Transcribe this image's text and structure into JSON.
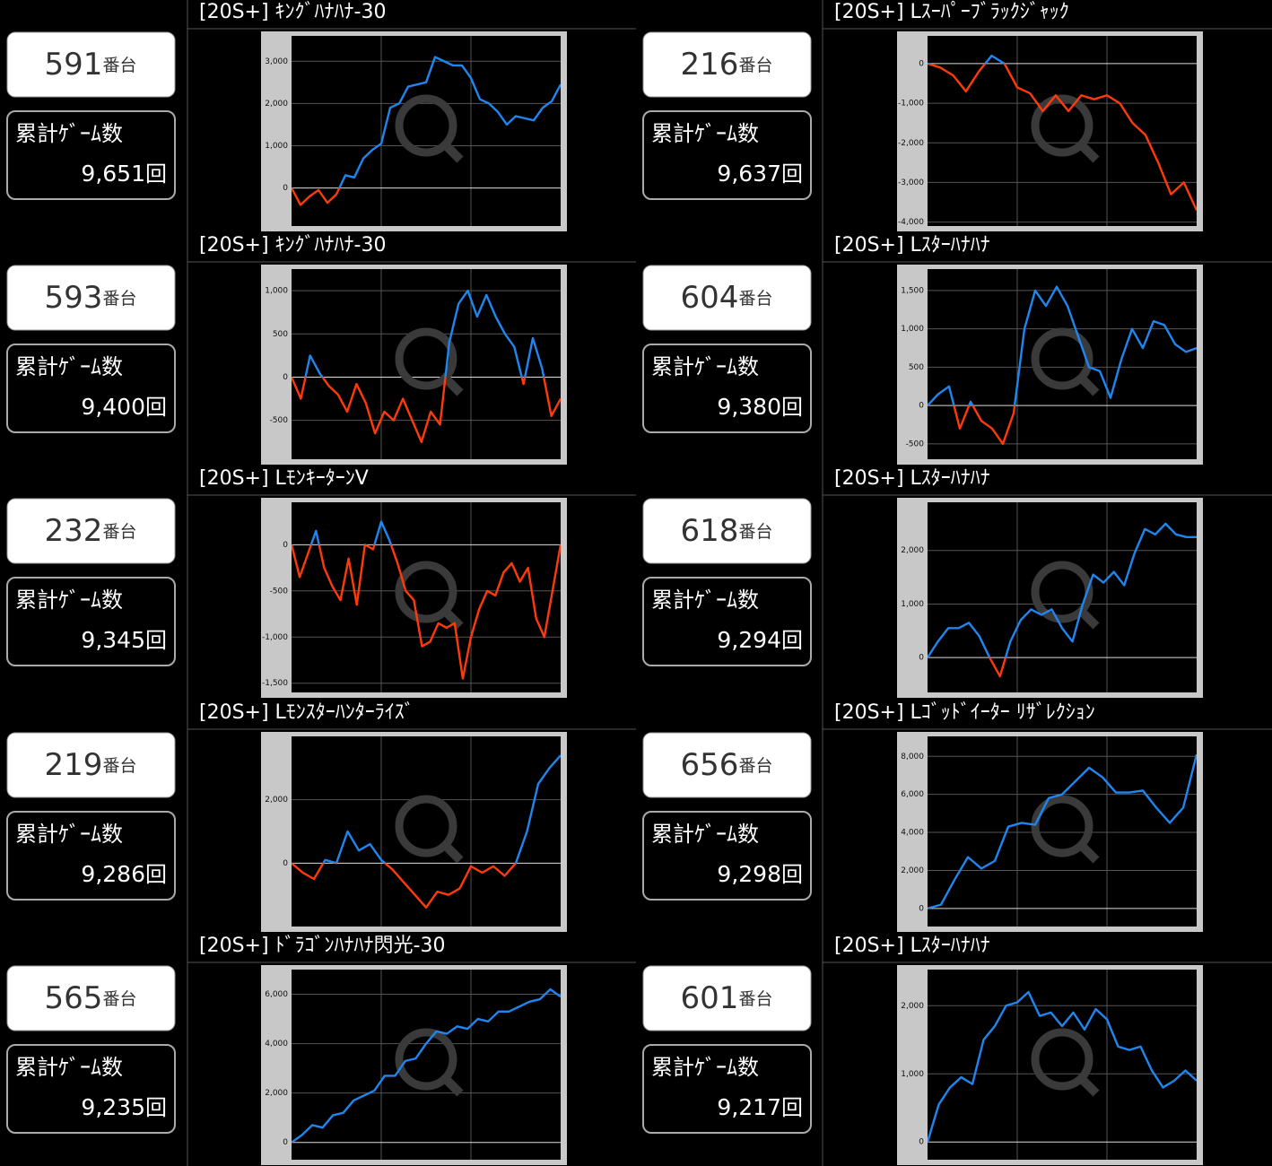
{
  "cards": [
    {
      "machine": "591",
      "machine_unit": "番台",
      "games_label": "累計ｹﾞｰﾑ数",
      "games": "9,651",
      "games_unit": "回"
    },
    {
      "machine": "593",
      "machine_unit": "番台",
      "games_label": "累計ｹﾞｰﾑ数",
      "games": "9,400",
      "games_unit": "回"
    },
    {
      "machine": "232",
      "machine_unit": "番台",
      "games_label": "累計ｹﾞｰﾑ数",
      "games": "9,345",
      "games_unit": "回"
    },
    {
      "machine": "219",
      "machine_unit": "番台",
      "games_label": "累計ｹﾞｰﾑ数",
      "games": "9,286",
      "games_unit": "回"
    },
    {
      "machine": "565",
      "machine_unit": "番台",
      "games_label": "累計ｹﾞｰﾑ数",
      "games": "9,235",
      "games_unit": "回"
    },
    {
      "machine": "216",
      "machine_unit": "番台",
      "games_label": "累計ｹﾞｰﾑ数",
      "games": "9,637",
      "games_unit": "回"
    },
    {
      "machine": "604",
      "machine_unit": "番台",
      "games_label": "累計ｹﾞｰﾑ数",
      "games": "9,380",
      "games_unit": "回"
    },
    {
      "machine": "618",
      "machine_unit": "番台",
      "games_label": "累計ｹﾞｰﾑ数",
      "games": "9,294",
      "games_unit": "回"
    },
    {
      "machine": "656",
      "machine_unit": "番台",
      "games_label": "累計ｹﾞｰﾑ数",
      "games": "9,298",
      "games_unit": "回"
    },
    {
      "machine": "601",
      "machine_unit": "番台",
      "games_label": "累計ｹﾞｰﾑ数",
      "games": "9,217",
      "games_unit": "回"
    }
  ],
  "chart_data": [
    {
      "type": "line",
      "title": "[20S+] ｷﾝｸﾞﾊﾅﾊﾅ-30",
      "color": "#1e86ee",
      "negative_color": "#ff3a0a",
      "values": [
        0,
        -400,
        -200,
        -50,
        -350,
        -150,
        300,
        250,
        700,
        900,
        1050,
        1900,
        2000,
        2400,
        2450,
        2500,
        3100,
        3000,
        2900,
        2900,
        2600,
        2100,
        2000,
        1800,
        1500,
        1700,
        1650,
        1600,
        1900,
        2050,
        2450
      ],
      "ylim": [
        -900,
        3600
      ],
      "yticks": [
        0,
        {
          "value": 1000,
          "label": "1,000"
        },
        {
          "value": 2000,
          "label": "2,000"
        },
        {
          "value": 3000,
          "label": "3,000"
        }
      ],
      "grid": true
    },
    {
      "type": "line",
      "title": "[20S+] ｷﾝｸﾞﾊﾅﾊﾅ-30",
      "color": "#1e86ee",
      "negative_color": "#ff3a0a",
      "values": [
        0,
        -250,
        250,
        50,
        -100,
        -200,
        -400,
        -80,
        -300,
        -650,
        -400,
        -500,
        -250,
        -500,
        -750,
        -400,
        -550,
        400,
        850,
        1000,
        700,
        950,
        700,
        500,
        350,
        -80,
        450,
        100,
        -450,
        -250
      ],
      "ylim": [
        -950,
        1250
      ],
      "yticks": [
        -500,
        0,
        500,
        {
          "value": 1000,
          "label": "1,000"
        }
      ],
      "grid": true
    },
    {
      "type": "line",
      "title": "[20S+] LﾓﾝｷｰﾀｰﾝV",
      "color": "#1e86ee",
      "negative_color": "#ff3a0a",
      "values": [
        0,
        -350,
        -100,
        150,
        -250,
        -450,
        -600,
        -150,
        -650,
        0,
        -50,
        250,
        50,
        -200,
        -500,
        -600,
        -1100,
        -1050,
        -850,
        -900,
        -850,
        -1450,
        -1000,
        -700,
        -500,
        -550,
        -300,
        -200,
        -400,
        -250,
        -800,
        -1000,
        -500,
        0
      ],
      "ylim": [
        -1600,
        460
      ],
      "yticks": [
        {
          "value": -1500,
          "label": "-1,500"
        },
        {
          "value": -1000,
          "label": "-1,000"
        },
        -500,
        0
      ],
      "grid": true
    },
    {
      "type": "line",
      "title": "[20S+] Lﾓﾝｽﾀｰﾊﾝﾀｰﾗｲｽﾞ",
      "color": "#1e86ee",
      "negative_color": "#ff3a0a",
      "values": [
        0,
        -300,
        -500,
        100,
        0,
        1000,
        400,
        600,
        100,
        -200,
        -600,
        -1000,
        -1400,
        -900,
        -1000,
        -800,
        -100,
        -300,
        -100,
        -400,
        0,
        1000,
        2500,
        3000,
        3400
      ],
      "ylim": [
        -2000,
        4000
      ],
      "yticks": [
        0,
        {
          "value": 2000,
          "label": "2,000"
        }
      ],
      "grid": true
    },
    {
      "type": "line",
      "title": "[20S+] ﾄﾞﾗｺﾞﾝﾊﾅﾊﾅ閃光-30",
      "color": "#1e86ee",
      "negative_color": "#ff3a0a",
      "values": [
        0,
        300,
        700,
        600,
        1100,
        1200,
        1700,
        1900,
        2100,
        2700,
        2700,
        3300,
        3400,
        4000,
        4500,
        4400,
        4700,
        4600,
        5000,
        4900,
        5300,
        5300,
        5500,
        5700,
        5800,
        6200,
        5900
      ],
      "ylim": [
        -700,
        7000
      ],
      "yticks": [
        0,
        {
          "value": 2000,
          "label": "2,000"
        },
        {
          "value": 4000,
          "label": "4,000"
        },
        {
          "value": 6000,
          "label": "6,000"
        }
      ],
      "grid": true
    },
    {
      "type": "line",
      "title": "[20S+] Lｽｰﾊﾟｰﾌﾞﾗｯｸｼﾞｬｯｸ",
      "color": "#1e86ee",
      "negative_color": "#ff3a0a",
      "values": [
        0,
        -100,
        -300,
        -700,
        -200,
        200,
        0,
        -600,
        -750,
        -1200,
        -800,
        -1200,
        -800,
        -900,
        -800,
        -1000,
        -1500,
        -1800,
        -2500,
        -3300,
        -3000,
        -3700
      ],
      "ylim": [
        -4100,
        700
      ],
      "yticks": [
        0,
        {
          "value": -1000,
          "label": "-1,000"
        },
        {
          "value": -2000,
          "label": "-2,000"
        },
        {
          "value": -3000,
          "label": "-3,000"
        },
        {
          "value": -4000,
          "label": "-4,000"
        }
      ],
      "grid": true
    },
    {
      "type": "line",
      "title": "[20S+] Lｽﾀｰﾊﾅﾊﾅ",
      "color": "#1e86ee",
      "negative_color": "#ff3a0a",
      "values": [
        0,
        150,
        250,
        -300,
        50,
        -200,
        -300,
        -500,
        -100,
        1000,
        1500,
        1300,
        1550,
        1300,
        900,
        500,
        450,
        100,
        600,
        1000,
        750,
        1100,
        1050,
        800,
        700,
        750
      ],
      "ylim": [
        -700,
        1780
      ],
      "yticks": [
        -500,
        0,
        500,
        {
          "value": 1000,
          "label": "1,000"
        },
        {
          "value": 1500,
          "label": "1,500"
        }
      ],
      "grid": true
    },
    {
      "type": "line",
      "title": "[20S+] Lｽﾀｰﾊﾅﾊﾅ",
      "color": "#1e86ee",
      "negative_color": "#ff3a0a",
      "values": [
        0,
        300,
        550,
        550,
        650,
        400,
        0,
        -350,
        300,
        700,
        900,
        800,
        900,
        550,
        300,
        1000,
        1550,
        1400,
        1600,
        1350,
        1950,
        2400,
        2300,
        2500,
        2300,
        2250,
        2250
      ],
      "ylim": [
        -650,
        2900
      ],
      "yticks": [
        0,
        {
          "value": 1000,
          "label": "1,000"
        },
        {
          "value": 2000,
          "label": "2,000"
        }
      ],
      "grid": true
    },
    {
      "type": "line",
      "title": "[20S+] Lｺﾞｯﾄﾞｲｰﾀｰ ﾘｻﾞﾚｸｼｮﾝ",
      "color": "#1e86ee",
      "negative_color": "#ff3a0a",
      "values": [
        0,
        200,
        1500,
        2700,
        2100,
        2500,
        4300,
        4500,
        4400,
        5800,
        6000,
        6700,
        7400,
        6900,
        6100,
        6100,
        6200,
        5300,
        4500,
        5300,
        8100
      ],
      "ylim": [
        -950,
        9050
      ],
      "yticks": [
        0,
        {
          "value": 2000,
          "label": "2,000"
        },
        {
          "value": 4000,
          "label": "4,000"
        },
        {
          "value": 6000,
          "label": "6,000"
        },
        {
          "value": 8000,
          "label": "8,000"
        }
      ],
      "grid": true
    },
    {
      "type": "line",
      "title": "[20S+] Lｽﾀｰﾊﾅﾊﾅ",
      "color": "#1e86ee",
      "negative_color": "#ff3a0a",
      "values": [
        0,
        550,
        800,
        950,
        850,
        1500,
        1700,
        2000,
        2050,
        2200,
        1850,
        1900,
        1700,
        1900,
        1650,
        1950,
        1800,
        1400,
        1350,
        1400,
        1050,
        800,
        900,
        1050,
        900
      ],
      "ylim": [
        -260,
        2530
      ],
      "yticks": [
        0,
        {
          "value": 1000,
          "label": "1,000"
        },
        {
          "value": 2000,
          "label": "2,000"
        }
      ],
      "grid": true
    }
  ]
}
